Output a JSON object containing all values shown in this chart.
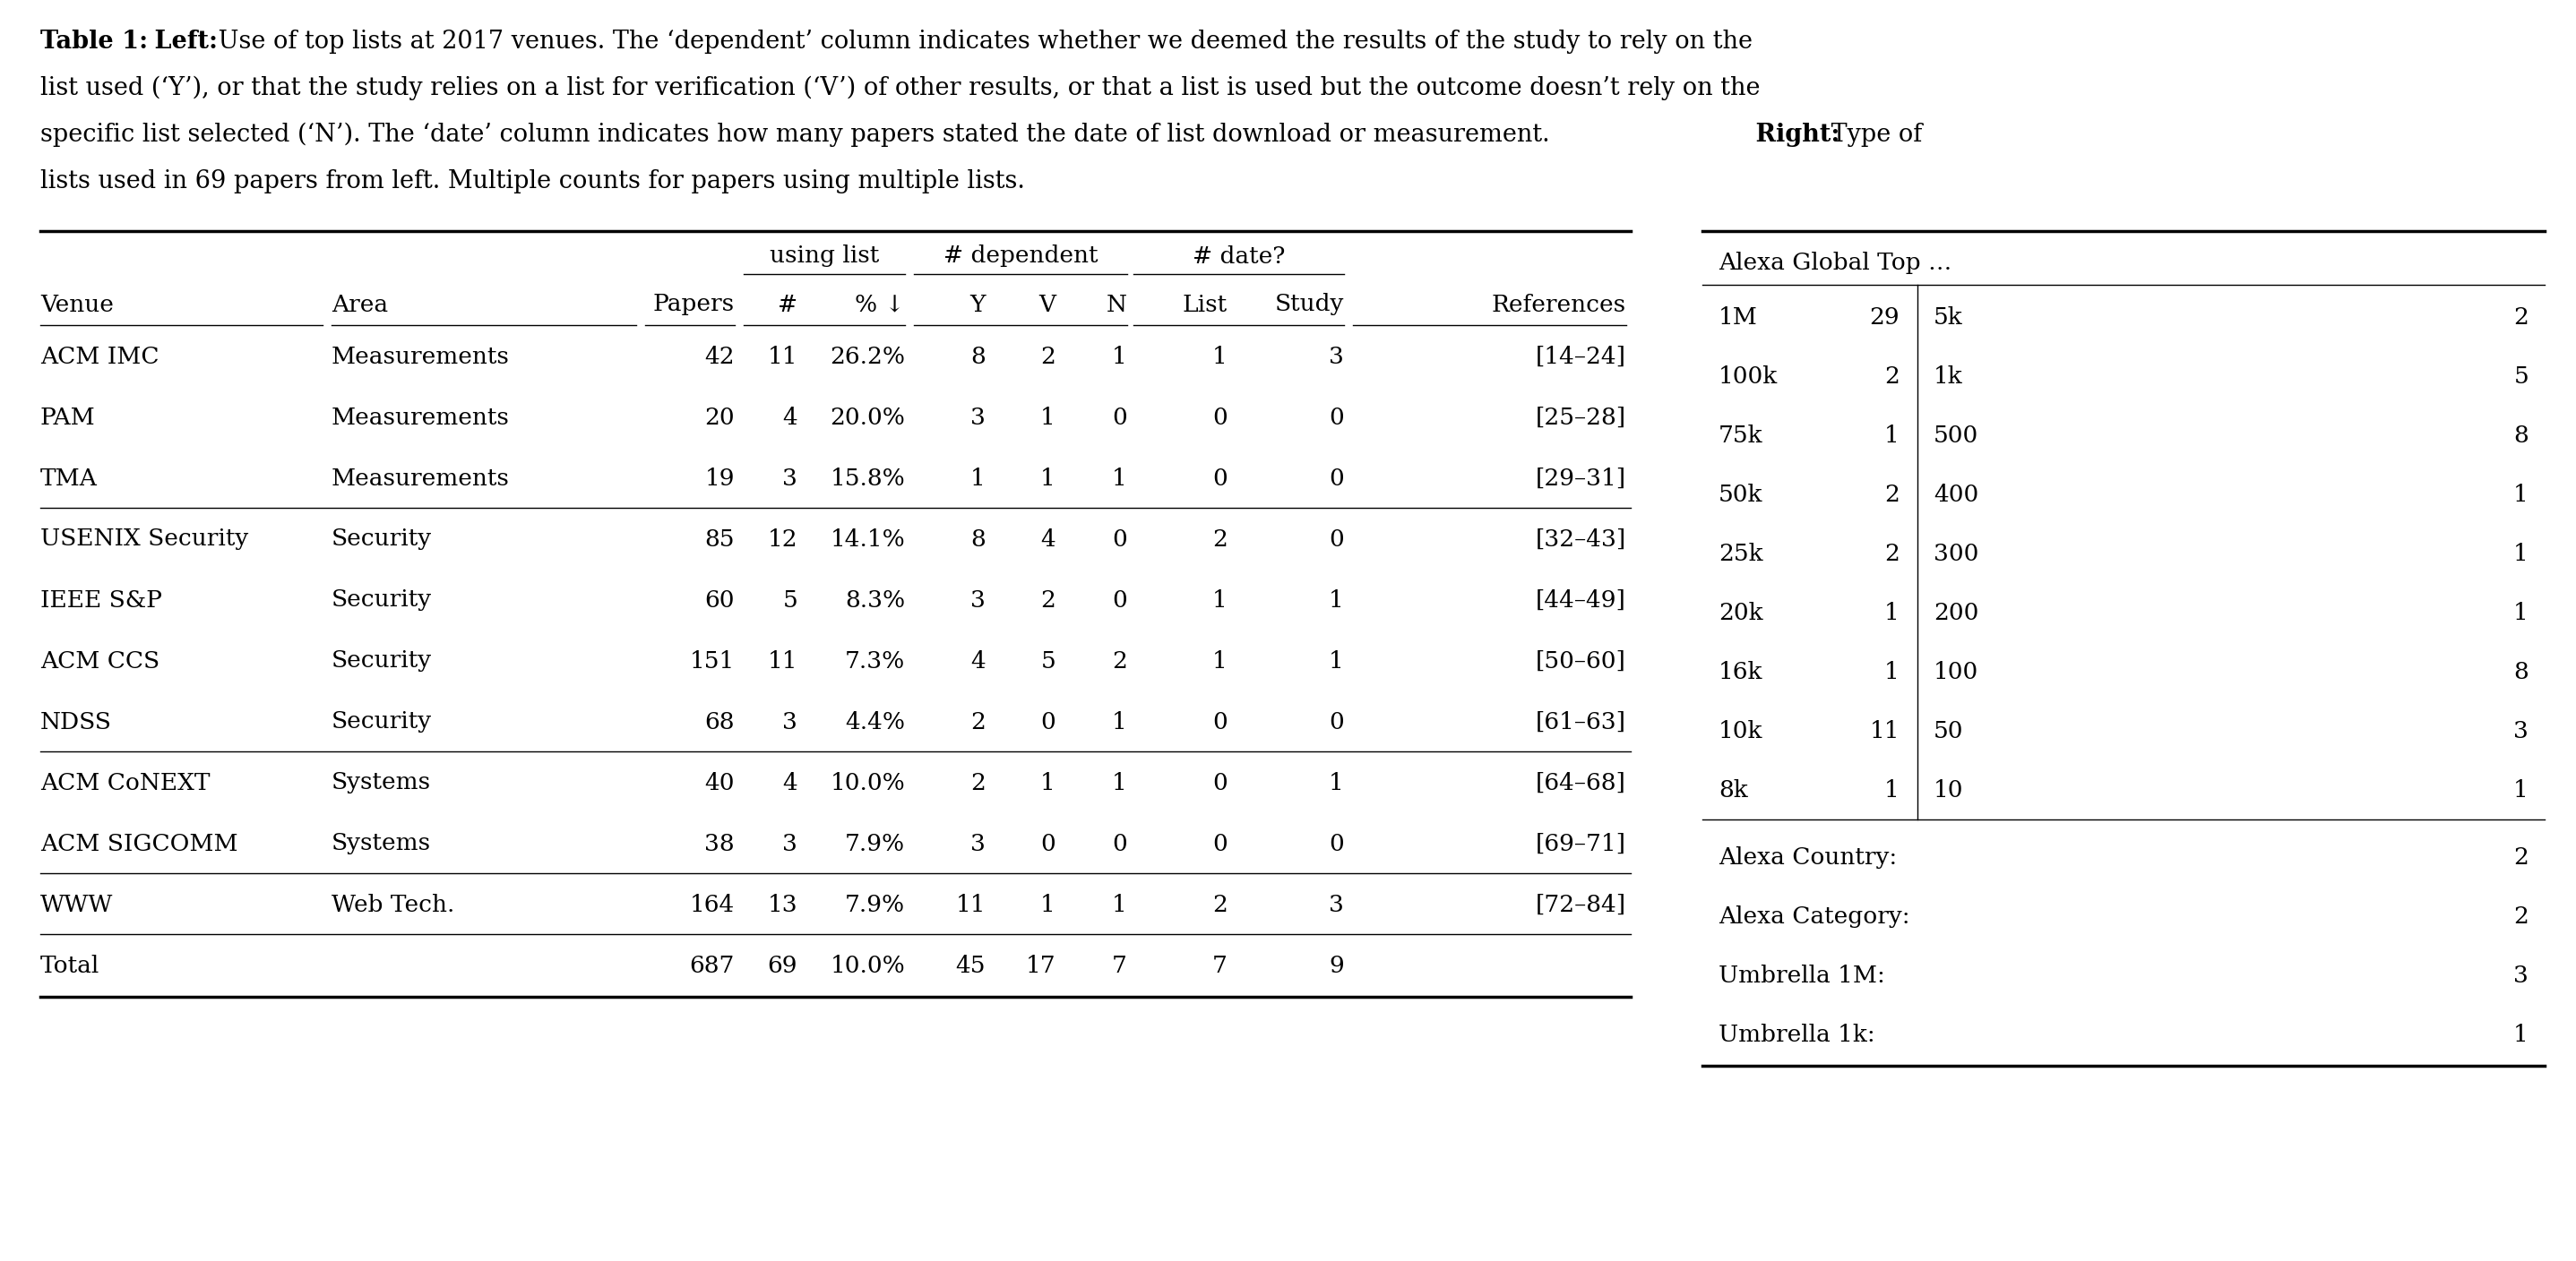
{
  "caption_line1_bold1": "Table 1:",
  "caption_line1_bold2": " Left:",
  "caption_line1_rest": " Use of top lists at 2017 venues. The ‘dependent’ column indicates whether we deemed the results of the study to rely on the",
  "caption_line2": "list used (‘Y’), or that the study relies on a list for verification (‘V’) of other results, or that a list is used but the outcome doesn’t rely on the",
  "caption_line3_part1": "specific list selected (‘N’). The ‘date’ column indicates how many papers stated the date of list download or measurement.",
  "caption_line3_bold": " Right:",
  "caption_line3_part2": " Type of",
  "caption_line4": "lists used in 69 papers from left. Multiple counts for papers using multiple lists.",
  "left_table": {
    "col_headers": [
      "Venue",
      "Area",
      "Papers",
      "#",
      "% ↓",
      "Y",
      "V",
      "N",
      "List",
      "Study",
      "References"
    ],
    "col_align": [
      "left",
      "left",
      "right",
      "right",
      "right",
      "right",
      "right",
      "right",
      "right",
      "right",
      "right"
    ],
    "span_label1": "using list",
    "span_label1_cols": [
      3,
      5
    ],
    "span_label2": "# dependent",
    "span_label2_cols": [
      5,
      8
    ],
    "span_label3": "# date?",
    "span_label3_cols": [
      8,
      10
    ],
    "rows": [
      [
        "ACM IMC",
        "Measurements",
        "42",
        "11",
        "26.2%",
        "8",
        "2",
        "1",
        "1",
        "3",
        "[14–24]"
      ],
      [
        "PAM",
        "Measurements",
        "20",
        "4",
        "20.0%",
        "3",
        "1",
        "0",
        "0",
        "0",
        "[25–28]"
      ],
      [
        "TMA",
        "Measurements",
        "19",
        "3",
        "15.8%",
        "1",
        "1",
        "1",
        "0",
        "0",
        "[29–31]"
      ],
      [
        "USENIX Security",
        "Security",
        "85",
        "12",
        "14.1%",
        "8",
        "4",
        "0",
        "2",
        "0",
        "[32–43]"
      ],
      [
        "IEEE S&P",
        "Security",
        "60",
        "5",
        "8.3%",
        "3",
        "2",
        "0",
        "1",
        "1",
        "[44–49]"
      ],
      [
        "ACM CCS",
        "Security",
        "151",
        "11",
        "7.3%",
        "4",
        "5",
        "2",
        "1",
        "1",
        "[50–60]"
      ],
      [
        "NDSS",
        "Security",
        "68",
        "3",
        "4.4%",
        "2",
        "0",
        "1",
        "0",
        "0",
        "[61–63]"
      ],
      [
        "ACM CoNEXT",
        "Systems",
        "40",
        "4",
        "10.0%",
        "2",
        "1",
        "1",
        "0",
        "1",
        "[64–68]"
      ],
      [
        "ACM SIGCOMM",
        "Systems",
        "38",
        "3",
        "7.9%",
        "3",
        "0",
        "0",
        "0",
        "0",
        "[69–71]"
      ],
      [
        "WWW",
        "Web Tech.",
        "164",
        "13",
        "7.9%",
        "11",
        "1",
        "1",
        "2",
        "3",
        "[72–84]"
      ],
      [
        "Total",
        "",
        "687",
        "69",
        "10.0%",
        "45",
        "17",
        "7",
        "7",
        "9",
        ""
      ]
    ],
    "group_separators_after": [
      2,
      6,
      8,
      9
    ]
  },
  "right_table": {
    "header": "Alexa Global Top …",
    "col1": [
      "1M",
      "100k",
      "75k",
      "50k",
      "25k",
      "20k",
      "16k",
      "10k",
      "8k"
    ],
    "col2": [
      "29",
      "2",
      "1",
      "2",
      "2",
      "1",
      "1",
      "11",
      "1"
    ],
    "col3": [
      "5k",
      "1k",
      "500",
      "400",
      "300",
      "200",
      "100",
      "50",
      "10"
    ],
    "col4": [
      "2",
      "5",
      "8",
      "1",
      "1",
      "1",
      "8",
      "3",
      "1"
    ],
    "extra_rows": [
      [
        "Alexa Country:",
        "2"
      ],
      [
        "Alexa Category:",
        "2"
      ],
      [
        "Umbrella 1M:",
        "3"
      ],
      [
        "Umbrella 1k:",
        "1"
      ]
    ]
  },
  "bg_color": "#ffffff",
  "font_family": "DejaVu Serif"
}
